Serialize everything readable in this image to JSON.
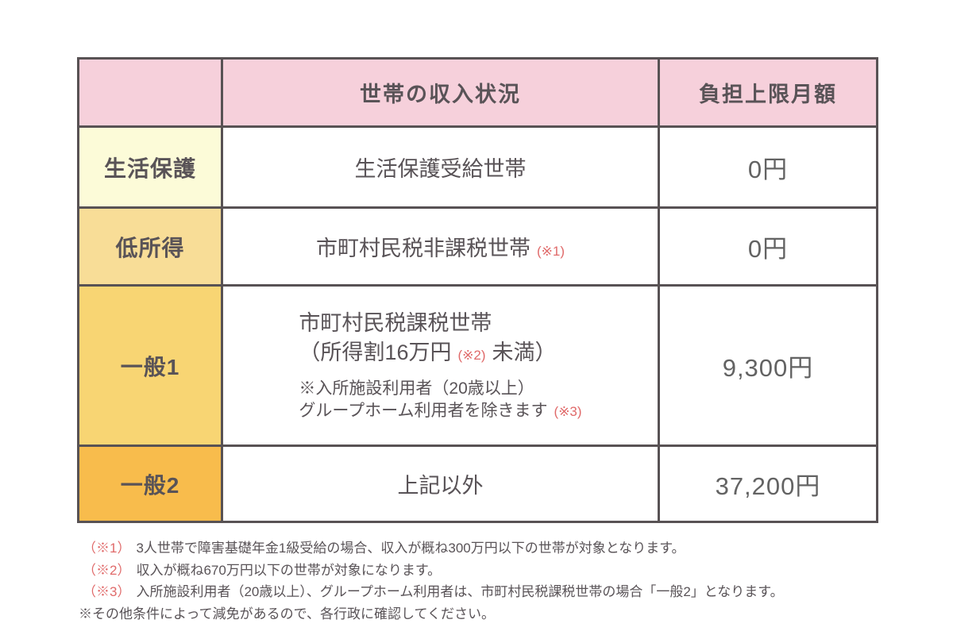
{
  "colors": {
    "header_pink": "#f6d0db",
    "row1_pale_yellow": "#fcfbd8",
    "row2_amber": "#f8dd97",
    "row3_gold": "#f8d573",
    "row4_orange": "#f8bc4c",
    "border_gray": "#585254",
    "text_gray": "#595357",
    "marker_red": "#e06a6a"
  },
  "table": {
    "header": {
      "category": "",
      "income": "世帯の収入状況",
      "amount": "負担上限月額"
    },
    "rows": [
      {
        "category": "生活保護",
        "income": "生活保護受給世帯",
        "amount": "0円"
      },
      {
        "category": "低所得",
        "income": "市町村民税非課税世帯",
        "income_marker": "(※1)",
        "amount": "0円"
      },
      {
        "category": "一般1",
        "income_line1": "市町村民税課税世帯",
        "income_line2_pre": "（所得割16万円",
        "income_line2_marker": "(※2)",
        "income_line2_post": "未満）",
        "income_note1": "※入所施設利用者（20歳以上）",
        "income_note2": "グループホーム利用者を除きます",
        "income_note2_marker": "(※3)",
        "amount": "9,300円"
      },
      {
        "category": "一般2",
        "income": "上記以外",
        "amount": "37,200円"
      }
    ]
  },
  "footnotes": [
    {
      "marker": "（※1）",
      "text": "3人世帯で障害基礎年金1級受給の場合、収入が概ね300万円以下の世帯が対象となります。"
    },
    {
      "marker": "（※2）",
      "text": "収入が概ね670万円以下の世帯が対象になります。"
    },
    {
      "marker": "（※3）",
      "text": "入所施設利用者（20歳以上）、グループホーム利用者は、市町村民税課税世帯の場合「一般2」となります。"
    },
    {
      "marker": "※",
      "text": "その他条件によって減免があるので、各行政に確認してください。"
    }
  ]
}
